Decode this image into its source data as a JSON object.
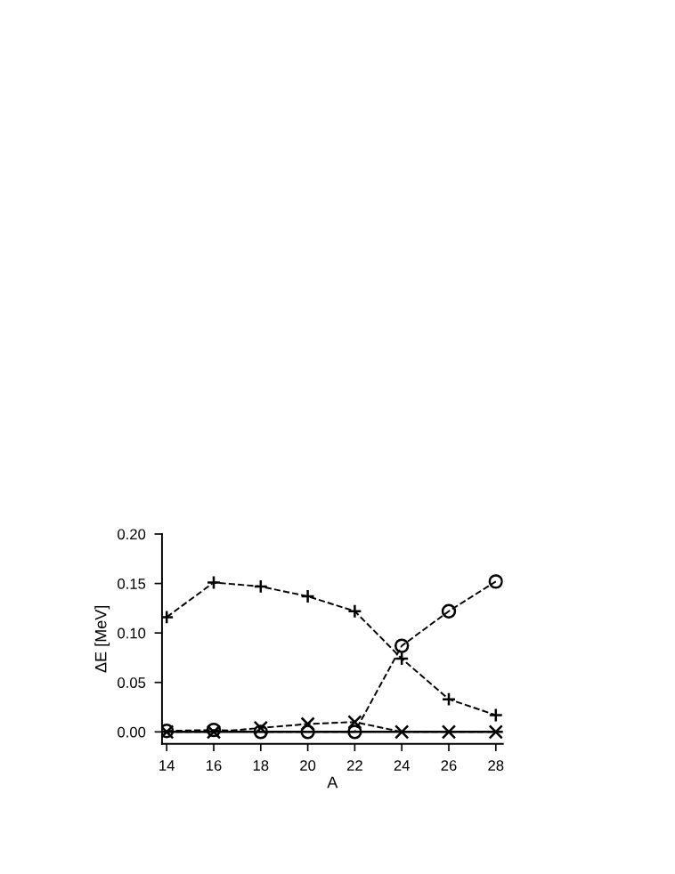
{
  "chart_data": {
    "type": "line",
    "xlabel": "A",
    "ylabel": "ΔE [MeV]",
    "x": [
      14,
      16,
      18,
      20,
      22,
      24,
      26,
      28
    ],
    "xlim": [
      13.8,
      28.3
    ],
    "xticks": [
      14,
      16,
      18,
      20,
      22,
      24,
      26,
      28
    ],
    "ylim": [
      -0.012,
      0.2
    ],
    "yticks": [
      {
        "value": 0,
        "label": "0.00"
      },
      {
        "value": 0.05,
        "label": "0.05"
      },
      {
        "value": 0.1,
        "label": "0.10"
      },
      {
        "value": 0.15,
        "label": "0.15"
      },
      {
        "value": 0.2,
        "label": "0.20"
      }
    ],
    "line_style": "dashed",
    "grid": false,
    "legend": false,
    "series": [
      {
        "color": "#000000",
        "marker": "cross",
        "values": [
          0.116,
          0.151,
          0.147,
          0.137,
          0.122,
          0.074,
          0.033,
          0.017
        ]
      },
      {
        "color": "#000000",
        "marker": "circle",
        "values": [
          0.001,
          0.002,
          0.0,
          0.0,
          0.0,
          0.087,
          0.122,
          0.152
        ]
      },
      {
        "color": "#000000",
        "marker": "x",
        "values": [
          0.0,
          0.0,
          0.004,
          0.008,
          0.01,
          0.0,
          0.0,
          0.0
        ]
      }
    ],
    "ref_lines": [
      {
        "axis": "y",
        "value": 0,
        "color": "#000000",
        "line_style": "solid"
      }
    ]
  }
}
